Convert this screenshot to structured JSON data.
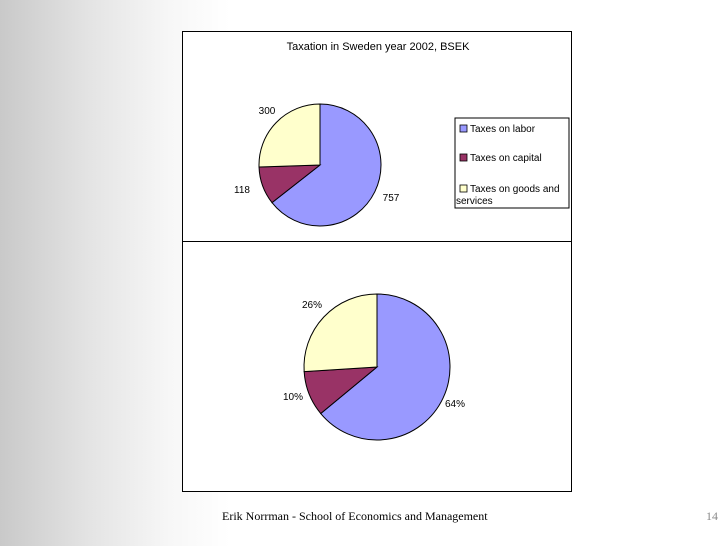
{
  "chart_data": [
    {
      "type": "pie",
      "title": "Taxation in Sweden year 2002, BSEK",
      "categories": [
        "Taxes on labor",
        "Taxes on capital",
        "Taxes on goods and services"
      ],
      "values": [
        757,
        118,
        300
      ],
      "labels": [
        "757",
        "118",
        "300"
      ],
      "colors": [
        "#9999ff",
        "#993366",
        "#ffffcc"
      ],
      "legend": {
        "position": "right",
        "entries": [
          "Taxes on labor",
          "Taxes on capital",
          "Taxes on goods and services"
        ]
      }
    },
    {
      "type": "pie",
      "title": "",
      "categories": [
        "Taxes on labor",
        "Taxes on capital",
        "Taxes on goods and services"
      ],
      "values": [
        64,
        10,
        26
      ],
      "labels": [
        "64%",
        "10%",
        "26%"
      ],
      "colors": [
        "#9999ff",
        "#993366",
        "#ffffcc"
      ]
    }
  ],
  "footer": {
    "text": "Erik Norrman - School of Economics and Management",
    "page_number": "14"
  }
}
